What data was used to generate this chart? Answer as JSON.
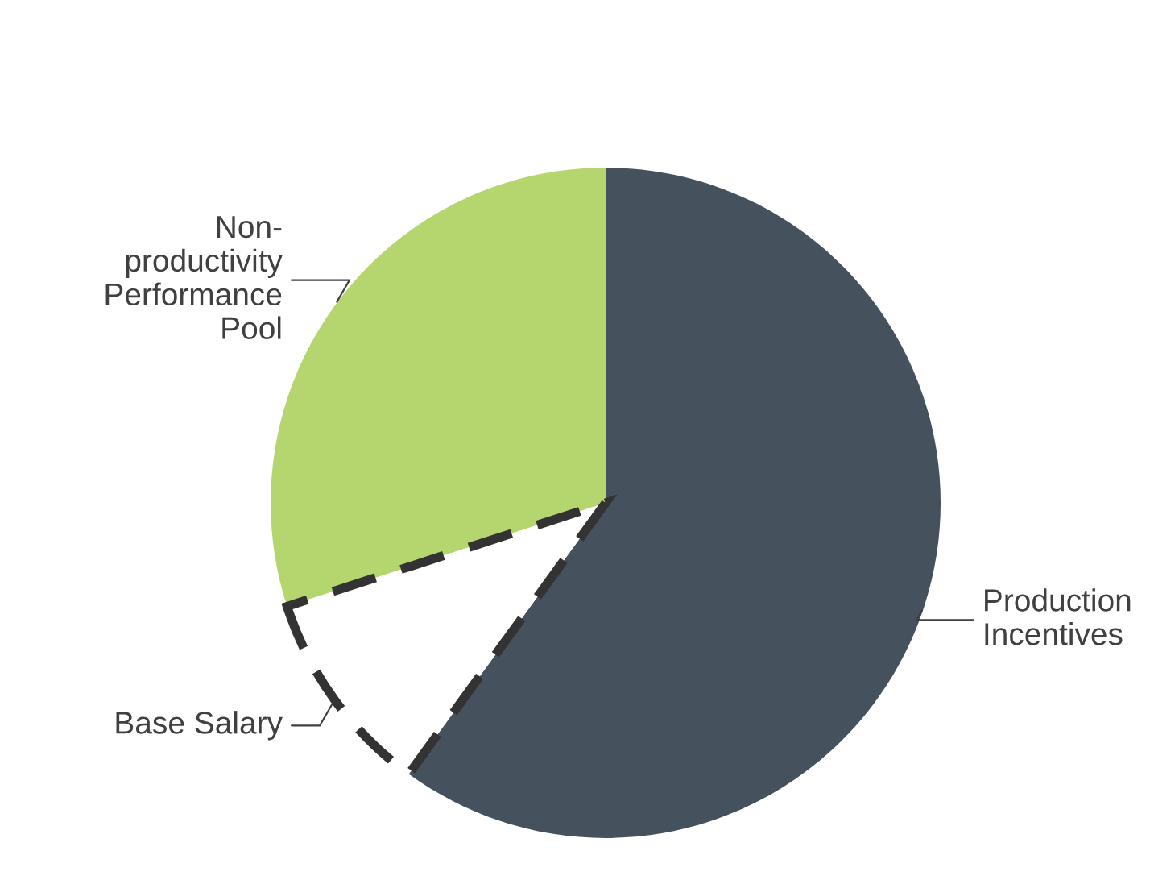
{
  "chart_data": {
    "type": "pie",
    "categories": [
      "Production\nIncentives",
      "Base Salary",
      "Non-\nproductivity\nPerformance\nPool"
    ],
    "values": [
      60,
      10,
      30
    ],
    "colors": [
      "#45525e",
      "#ffffff",
      "#b5d56f"
    ],
    "line_style": "dashed",
    "legend": false
  }
}
